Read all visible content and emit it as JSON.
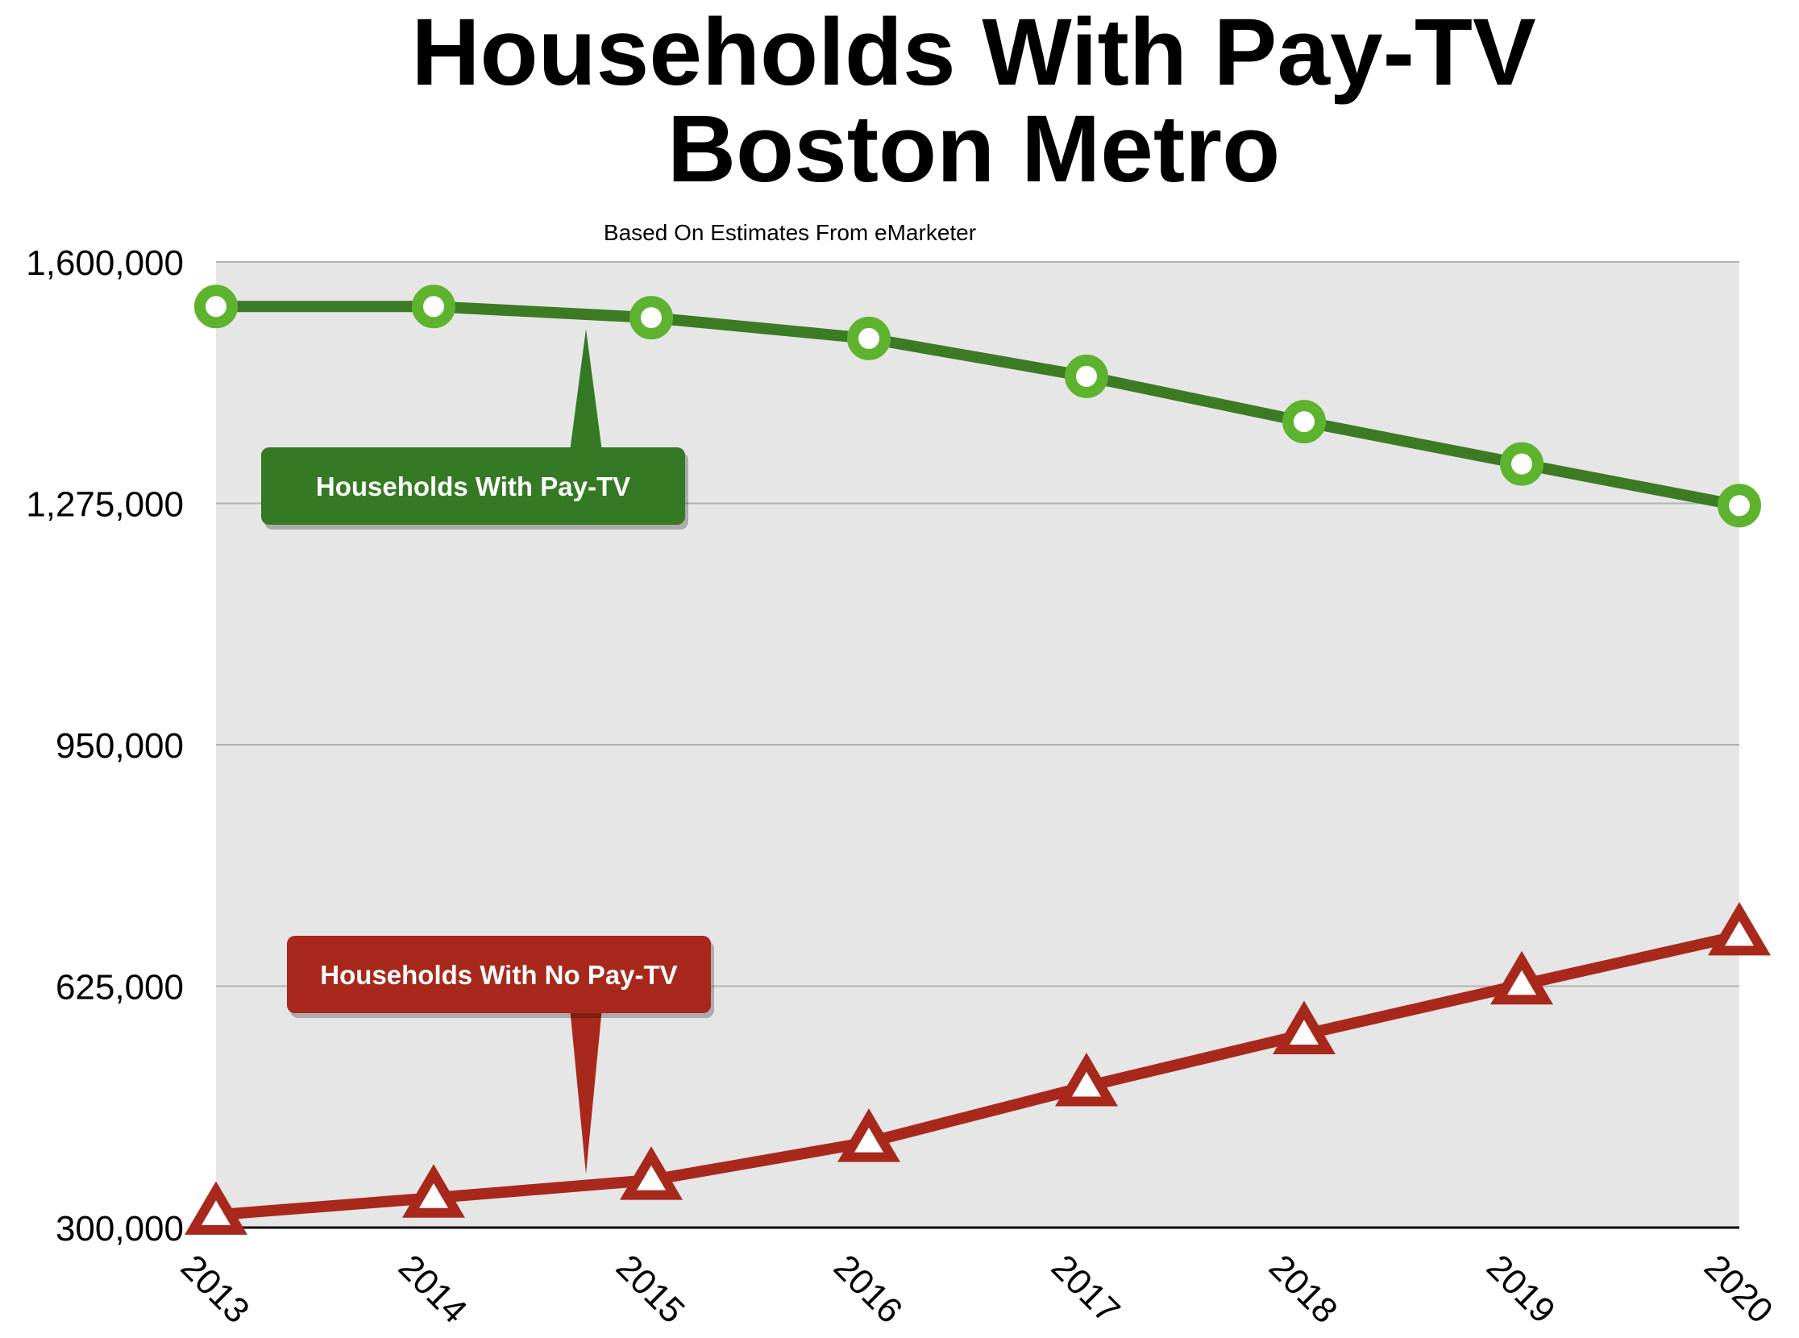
{
  "chart_data": {
    "type": "line",
    "title": [
      "Households With Pay-TV",
      "Boston Metro"
    ],
    "subtitle": "Based On Estimates From eMarketer",
    "xlabel": "",
    "ylabel": "",
    "x": [
      "2013",
      "2014",
      "2015",
      "2016",
      "2017",
      "2018",
      "2019",
      "2020"
    ],
    "ylim": [
      300000,
      1600000
    ],
    "yticks": [
      300000,
      625000,
      950000,
      1275000,
      1600000
    ],
    "ytick_labels": [
      "300,000",
      "625,000",
      "950,000",
      "1,275,000",
      "1,600,000"
    ],
    "grid": true,
    "legend": "callouts",
    "series": [
      {
        "name": "Households With Pay-TV",
        "values": [
          1540000,
          1540000,
          1525000,
          1497000,
          1446000,
          1385000,
          1328000,
          1272000
        ],
        "color": "#3d7a24",
        "marker": "circle",
        "marker_color": "#5db32e",
        "callout_color": "#347a24",
        "callout_anchor_index": 1.7
      },
      {
        "name": "Households With No Pay-TV",
        "values": [
          317000,
          340000,
          364000,
          415000,
          490000,
          560000,
          627000,
          693000
        ],
        "color": "#a8281c",
        "marker": "triangle",
        "marker_color": "#a8281c",
        "callout_color": "#a8281c",
        "callout_anchor_index": 1.7
      }
    ],
    "colors": {
      "plot_background": "#e6e6e6",
      "gridline": "#b3b3b3",
      "axis": "#000000"
    }
  }
}
